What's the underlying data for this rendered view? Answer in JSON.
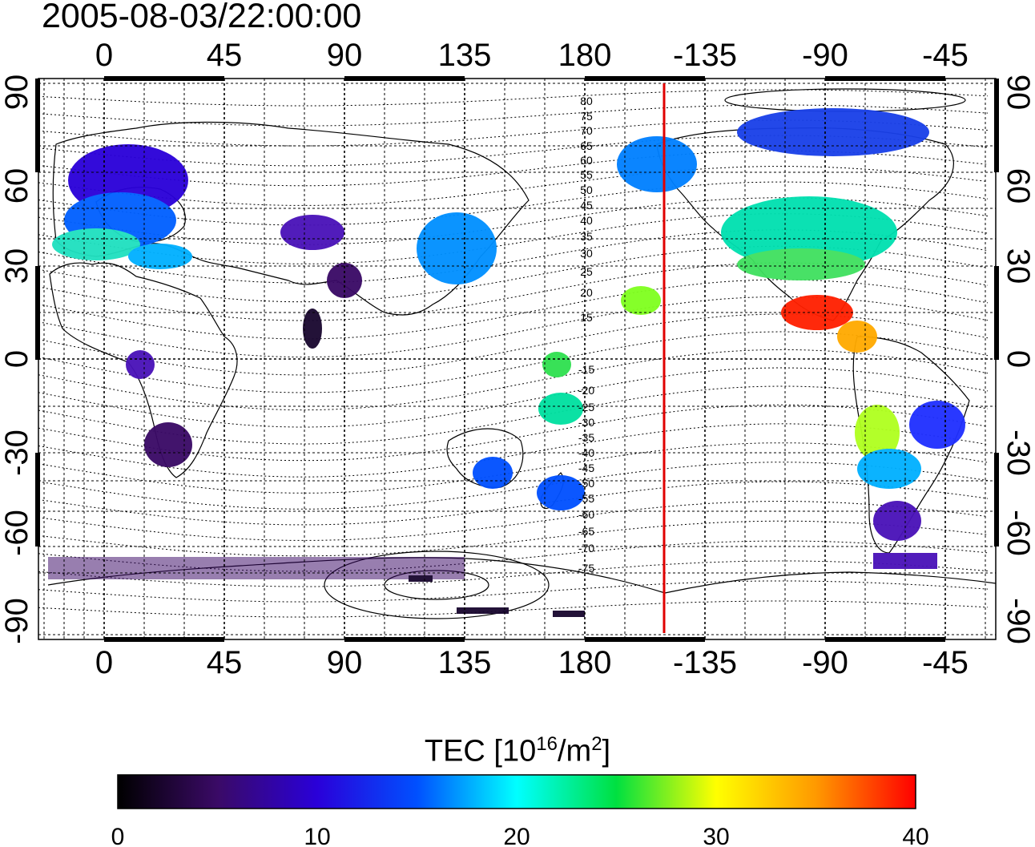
{
  "title": "2005-08-03/22:00:00",
  "map": {
    "lon_ticks": [
      "0",
      "45",
      "90",
      "135",
      "180",
      "-135",
      "-90",
      "-45"
    ],
    "lat_ticks": [
      "90",
      "60",
      "30",
      "0",
      "-30",
      "-60",
      "-90"
    ],
    "contour_labels_north": [
      "80",
      "75",
      "70",
      "65",
      "60",
      "55",
      "50",
      "45",
      "40",
      "35",
      "30",
      "25",
      "20",
      "15"
    ],
    "contour_labels_south": [
      "-15",
      "-20",
      "-25",
      "-30",
      "-35",
      "-40",
      "-45",
      "-50",
      "-55",
      "-60",
      "-65",
      "-70",
      "-75"
    ],
    "colors": {
      "terminator_line": "#e00000",
      "frame": "#000000"
    }
  },
  "colorbar": {
    "title_prefix": "TEC  [10",
    "title_sup1": "16",
    "title_mid": "/m",
    "title_sup2": "2",
    "title_suffix": "]",
    "ticks": [
      "0",
      "10",
      "20",
      "30",
      "40"
    ],
    "range": [
      0,
      40
    ],
    "stops": [
      "#000000",
      "#3a0a66",
      "#2a00d9",
      "#0050ff",
      "#00ffff",
      "#00e040",
      "#ffff00",
      "#ff9900",
      "#ff0000"
    ]
  }
}
